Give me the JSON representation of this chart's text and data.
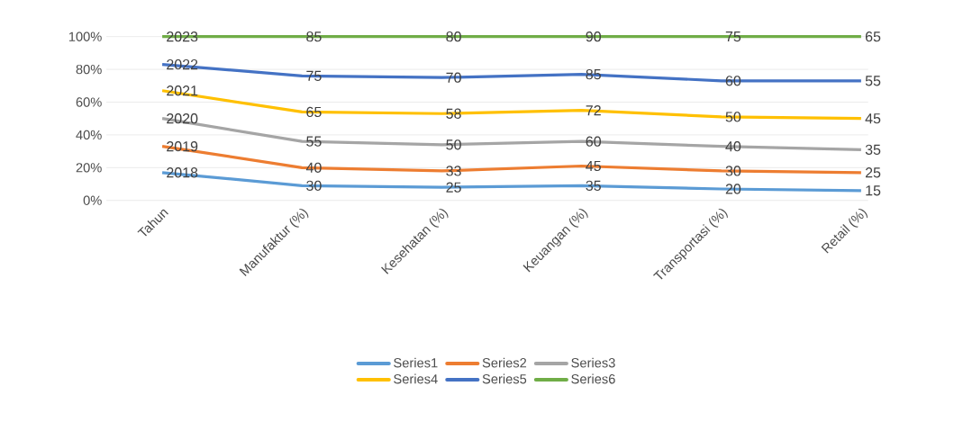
{
  "chart_data": {
    "type": "line",
    "categories": [
      "Tahun",
      "Manufaktur (%)",
      "Kesehatan (%)",
      "Keuangan (%)",
      "Transportasi (%)",
      "Retail (%)"
    ],
    "series": [
      {
        "name": "Series1",
        "color": "#5b9bd5",
        "values": [
          17,
          9,
          8,
          9,
          7,
          6
        ]
      },
      {
        "name": "Series2",
        "color": "#ed7d31",
        "values": [
          33,
          20,
          18,
          21,
          18,
          17
        ]
      },
      {
        "name": "Series3",
        "color": "#a5a5a5",
        "values": [
          50,
          36,
          34,
          36,
          33,
          31
        ]
      },
      {
        "name": "Series4",
        "color": "#ffc000",
        "values": [
          67,
          54,
          53,
          55,
          51,
          50
        ]
      },
      {
        "name": "Series5",
        "color": "#4472c4",
        "values": [
          83,
          76,
          75,
          77,
          73,
          73
        ]
      },
      {
        "name": "Series6",
        "color": "#70ad47",
        "values": [
          100,
          100,
          100,
          100,
          100,
          100
        ]
      }
    ],
    "annotations": [
      {
        "text": "2018",
        "x": "Tahun",
        "y": 17
      },
      {
        "text": "30",
        "x": "Manufaktur (%)",
        "y": 9
      },
      {
        "text": "25",
        "x": "Kesehatan (%)",
        "y": 8
      },
      {
        "text": "35",
        "x": "Keuangan (%)",
        "y": 9
      },
      {
        "text": "20",
        "x": "Transportasi (%)",
        "y": 7
      },
      {
        "text": "15",
        "x": "Retail (%)",
        "y": 6
      },
      {
        "text": "2019",
        "x": "Tahun",
        "y": 33
      },
      {
        "text": "40",
        "x": "Manufaktur (%)",
        "y": 20
      },
      {
        "text": "33",
        "x": "Kesehatan (%)",
        "y": 18
      },
      {
        "text": "45",
        "x": "Keuangan (%)",
        "y": 21
      },
      {
        "text": "30",
        "x": "Transportasi (%)",
        "y": 18
      },
      {
        "text": "25",
        "x": "Retail (%)",
        "y": 17
      },
      {
        "text": "2020",
        "x": "Tahun",
        "y": 50
      },
      {
        "text": "55",
        "x": "Manufaktur (%)",
        "y": 36
      },
      {
        "text": "50",
        "x": "Kesehatan (%)",
        "y": 34
      },
      {
        "text": "60",
        "x": "Keuangan (%)",
        "y": 36
      },
      {
        "text": "40",
        "x": "Transportasi (%)",
        "y": 33
      },
      {
        "text": "35",
        "x": "Retail (%)",
        "y": 31
      },
      {
        "text": "2021",
        "x": "Tahun",
        "y": 67
      },
      {
        "text": "65",
        "x": "Manufaktur (%)",
        "y": 54
      },
      {
        "text": "58",
        "x": "Kesehatan (%)",
        "y": 53
      },
      {
        "text": "72",
        "x": "Keuangan (%)",
        "y": 55
      },
      {
        "text": "50",
        "x": "Transportasi (%)",
        "y": 51
      },
      {
        "text": "45",
        "x": "Retail (%)",
        "y": 50
      },
      {
        "text": "2022",
        "x": "Tahun",
        "y": 83
      },
      {
        "text": "75",
        "x": "Manufaktur (%)",
        "y": 76
      },
      {
        "text": "70",
        "x": "Kesehatan (%)",
        "y": 75
      },
      {
        "text": "85",
        "x": "Keuangan (%)",
        "y": 77
      },
      {
        "text": "60",
        "x": "Transportasi (%)",
        "y": 73
      },
      {
        "text": "55",
        "x": "Retail (%)",
        "y": 73
      },
      {
        "text": "2023",
        "x": "Tahun",
        "y": 100
      },
      {
        "text": "85",
        "x": "Manufaktur (%)",
        "y": 100
      },
      {
        "text": "80",
        "x": "Kesehatan (%)",
        "y": 100
      },
      {
        "text": "90",
        "x": "Keuangan (%)",
        "y": 100
      },
      {
        "text": "75",
        "x": "Transportasi (%)",
        "y": 100
      },
      {
        "text": "65",
        "x": "Retail (%)",
        "y": 100
      }
    ],
    "ylim": [
      0,
      100
    ],
    "yticks": [
      {
        "value": 0,
        "label": "0%"
      },
      {
        "value": 20,
        "label": "20%"
      },
      {
        "value": 40,
        "label": "40%"
      },
      {
        "value": 60,
        "label": "60%"
      },
      {
        "value": 80,
        "label": "80%"
      },
      {
        "value": 100,
        "label": "100%"
      }
    ],
    "grid": "y",
    "legend": "bottom",
    "marker": "none",
    "line_style": "solid"
  }
}
